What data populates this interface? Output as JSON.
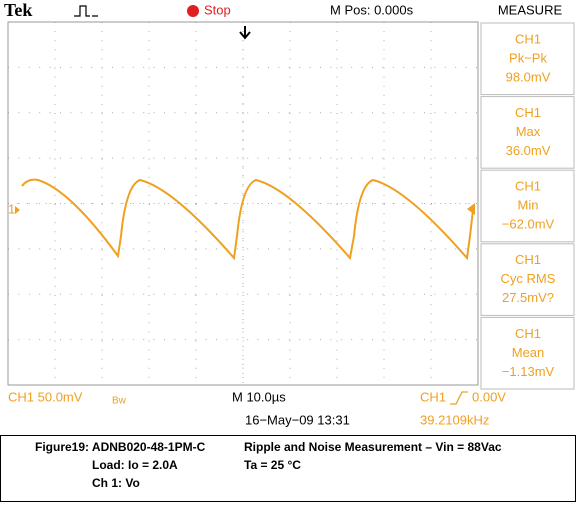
{
  "header": {
    "brand": "Tek",
    "status": "Stop",
    "position": "M Pos: 0.000s",
    "menu": "MEASURE"
  },
  "channel_marker": "1",
  "measurements": [
    {
      "channel": "CH1",
      "label": "Pk−Pk",
      "value": "98.0mV"
    },
    {
      "channel": "CH1",
      "label": "Max",
      "value": "36.0mV"
    },
    {
      "channel": "CH1",
      "label": "Min",
      "value": "−62.0mV"
    },
    {
      "channel": "CH1",
      "label": "Cyc RMS",
      "value": "27.5mV?"
    },
    {
      "channel": "CH1",
      "label": "Mean",
      "value": "−1.13mV"
    }
  ],
  "footer": {
    "channel_scale": "CH1  50.0mV",
    "bandwidth": "Bw",
    "timebase": "M 10.0µs",
    "trigger_channel": "CH1",
    "trigger_level": "0.00V",
    "date": "16−May−09 13:31",
    "frequency": "39.2109kHz"
  },
  "caption": {
    "figure": "Figure19: ADNB020-48-1PM-C",
    "title": "Ripple and Noise Measurement – Vin = 88Vac",
    "load": "Load: Io = 2.0A",
    "temperature": "Ta = 25 °C",
    "channel": "Ch 1: Vo"
  }
}
